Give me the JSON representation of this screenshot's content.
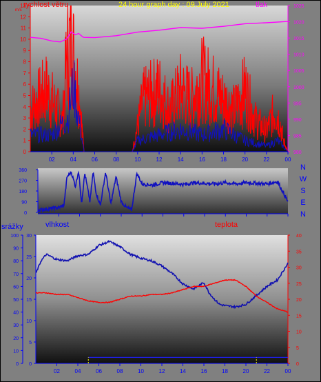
{
  "top": {
    "title": "24 hour graph day : 09.July 2021",
    "left_label": "rychlost větru",
    "right_label": "tlak",
    "left_unit": "m/s",
    "left_ticks": [
      0,
      1,
      2,
      3,
      4,
      5,
      6,
      7,
      8,
      9,
      10,
      11,
      12,
      13
    ],
    "right_ticks": [
      980,
      985,
      990,
      995,
      1000,
      1005,
      1010,
      1015,
      1020,
      1025
    ],
    "x_ticks": [
      "02",
      "04",
      "06",
      "08",
      "10",
      "12",
      "14",
      "16",
      "18",
      "20",
      "22",
      "00"
    ]
  },
  "mid": {
    "left_ticks": [
      0,
      90,
      180,
      270,
      360
    ],
    "right_labels": [
      "N",
      "W",
      "S",
      "E",
      "N"
    ],
    "x_ticks": [
      "02",
      "04",
      "06",
      "08",
      "10",
      "12",
      "14",
      "16",
      "18",
      "20",
      "22",
      "00"
    ]
  },
  "bottom": {
    "label_a": "srážky",
    "label_b": "vlhkost",
    "label_c": "teplota",
    "axis_a_ticks": [
      0,
      10,
      20,
      30,
      40,
      50,
      60,
      70,
      80,
      90,
      100
    ],
    "axis_b_ticks": [
      0,
      5,
      10,
      15,
      20,
      25,
      30
    ],
    "right_ticks": [
      0,
      5,
      10,
      15,
      20,
      25,
      30,
      35,
      40
    ],
    "x_ticks": [
      "02",
      "04",
      "06",
      "08",
      "10",
      "12",
      "14",
      "16",
      "18",
      "20",
      "22",
      "00"
    ]
  },
  "colors": {
    "wind_gust": "#ff0000",
    "wind_avg": "#1010c0",
    "pressure": "#ff00ff",
    "direction": "#1010c0",
    "humidity": "#1010b0",
    "temperature": "#ff0000",
    "precip_marker": "#ffff00"
  },
  "chart_data": [
    {
      "type": "line",
      "series": [
        {
          "name": "rychlost větru",
          "x": [
            0,
            1.5,
            3,
            3.4,
            3.8,
            4.2,
            4.6,
            5,
            5.5,
            9.5,
            10.5,
            12,
            13,
            14,
            15,
            16,
            17,
            18,
            19,
            20,
            21,
            22,
            22.8,
            23.2,
            23.6,
            24
          ],
          "values": [
            4,
            6,
            3,
            9,
            11,
            8,
            5,
            0,
            0,
            0,
            5,
            6,
            4,
            6,
            5,
            7,
            6,
            5,
            4,
            6,
            3,
            2,
            4,
            3,
            1,
            0
          ]
        },
        {
          "name": "avg",
          "x": [
            0,
            2,
            3.5,
            4,
            4.5,
            5,
            5.5,
            9.5,
            10,
            12,
            14,
            16,
            18,
            20,
            22,
            23,
            24
          ],
          "values": [
            1.5,
            1.5,
            3,
            6,
            3,
            0,
            0,
            0,
            1,
            1.5,
            2,
            1.5,
            2,
            1,
            0.5,
            1,
            0
          ]
        },
        {
          "name": "tlak",
          "x": [
            0,
            1,
            2,
            2.8,
            3.4,
            3.8,
            4.2,
            4.5,
            4.9,
            5,
            6,
            8,
            10,
            12,
            14,
            16,
            18,
            20,
            22,
            24
          ],
          "values": [
            1015.2,
            1014.9,
            1014.1,
            1013.8,
            1014.7,
            1016.9,
            1016.0,
            1016.4,
            1015.3,
            1015.2,
            1015.1,
            1015.7,
            1016.8,
            1017.4,
            1018.2,
            1018.0,
            1018.6,
            1019.4,
            1019.7,
            1020.1
          ]
        }
      ],
      "ylim": [
        0,
        13
      ],
      "y2lim": [
        980,
        1025
      ],
      "xlim": [
        0,
        24
      ]
    },
    {
      "type": "line",
      "series": [
        {
          "name": "direction",
          "x": [
            0,
            1,
            2,
            2.5,
            2.8,
            3.2,
            3.6,
            3.9,
            4.2,
            4.5,
            5,
            5.3,
            5.6,
            6,
            6.5,
            7,
            7.5,
            8,
            8.5,
            9,
            9.5,
            10,
            11,
            12,
            13,
            14,
            15,
            16,
            17,
            18,
            19,
            20,
            21,
            22,
            23,
            24
          ],
          "values": [
            20,
            30,
            40,
            60,
            300,
            340,
            220,
            350,
            80,
            330,
            90,
            340,
            160,
            60,
            340,
            70,
            300,
            90,
            40,
            20,
            330,
            240,
            230,
            250,
            245,
            235,
            250,
            245,
            240,
            250,
            240,
            250,
            245,
            240,
            260,
            90
          ]
        }
      ],
      "ylim": [
        0,
        360
      ],
      "xlim": [
        0,
        24
      ]
    },
    {
      "type": "line",
      "series": [
        {
          "name": "vlhkost",
          "x": [
            0,
            0.5,
            1,
            2,
            3,
            4,
            5,
            6,
            7,
            8,
            9,
            10,
            11,
            12,
            13,
            14,
            15,
            16,
            16.5,
            17,
            17.5,
            18,
            19,
            20,
            21,
            22,
            23,
            24
          ],
          "values": [
            70,
            80,
            85,
            81,
            80,
            84,
            85,
            92,
            95,
            91,
            85,
            82,
            80,
            76,
            70,
            62,
            58,
            63,
            55,
            50,
            46,
            45,
            44,
            46,
            53,
            60,
            65,
            78
          ]
        },
        {
          "name": "teplota",
          "x": [
            0,
            1,
            2,
            3,
            4,
            5,
            6,
            7,
            8,
            9,
            10,
            11,
            12,
            13,
            14,
            15,
            16,
            17,
            18,
            19,
            20,
            21,
            22,
            23,
            24
          ],
          "values": [
            22,
            22,
            21.5,
            21.5,
            20.5,
            19.5,
            19,
            19,
            20,
            21,
            21,
            21.5,
            21.5,
            22,
            23,
            24,
            24,
            25,
            26,
            26,
            24,
            21,
            19,
            17,
            16
          ]
        },
        {
          "name": "srážky",
          "x": [
            0,
            5,
            5.01,
            21,
            21.01,
            24
          ],
          "values": [
            0,
            0,
            0,
            0,
            0,
            0
          ]
        }
      ],
      "y_left_a": [
        0,
        100
      ],
      "y_left_b": [
        0,
        30
      ],
      "y_right": [
        0,
        40
      ],
      "xlim": [
        0,
        24
      ],
      "precip_markers_hours": [
        5,
        21
      ]
    }
  ]
}
